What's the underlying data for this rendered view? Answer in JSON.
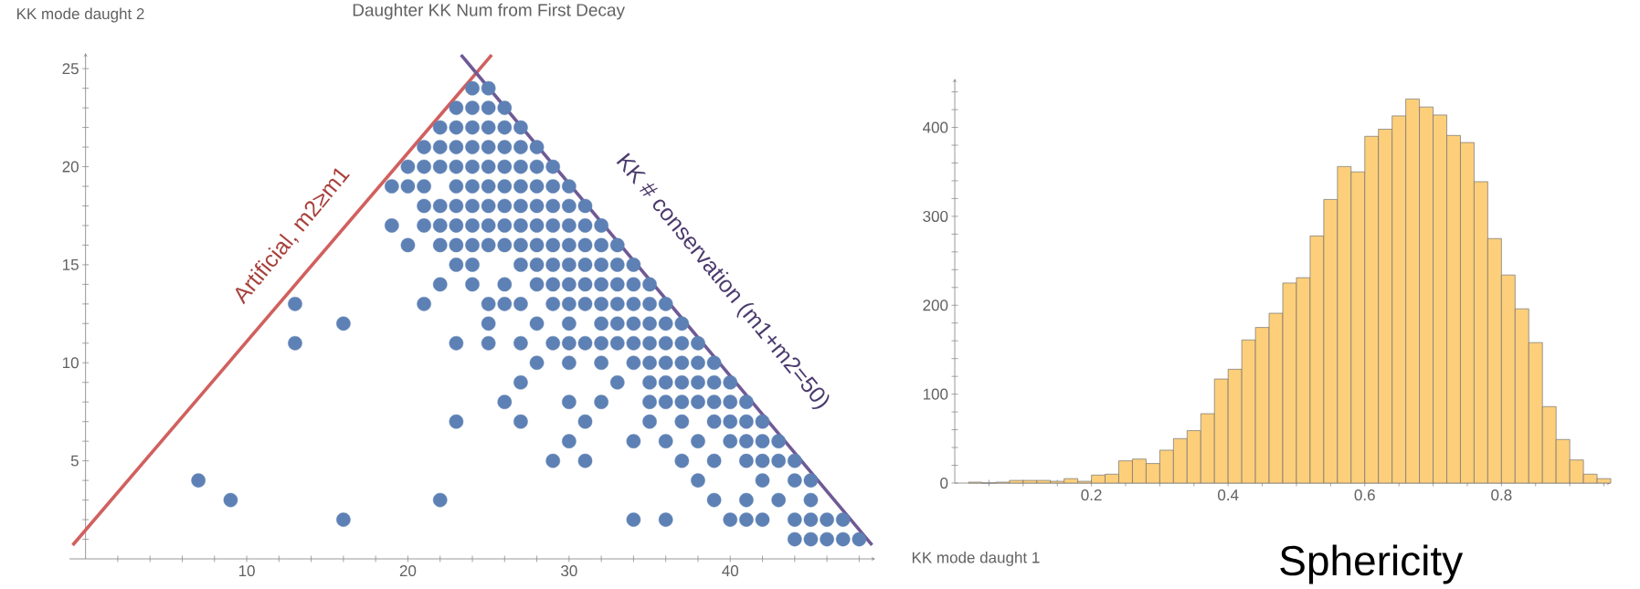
{
  "chart_data": [
    {
      "type": "scatter",
      "title": "Daughter KK Num from First Decay",
      "xlabel": "KK mode daught 1",
      "ylabel": "KK mode daught 2",
      "xlim": [
        -1,
        49
      ],
      "ylim": [
        0,
        25.8
      ],
      "xticks": [
        {
          "value": 2,
          "label": null
        },
        {
          "value": 4,
          "label": null
        },
        {
          "value": 6,
          "label": null
        },
        {
          "value": 8,
          "label": null
        },
        10,
        {
          "value": 12,
          "label": null
        },
        {
          "value": 14,
          "label": null
        },
        {
          "value": 16,
          "label": null
        },
        {
          "value": 18,
          "label": null
        },
        20,
        {
          "value": 22,
          "label": null
        },
        {
          "value": 24,
          "label": null
        },
        {
          "value": 26,
          "label": null
        },
        {
          "value": 28,
          "label": null
        },
        30,
        {
          "value": 32,
          "label": null
        },
        {
          "value": 34,
          "label": null
        },
        {
          "value": 36,
          "label": null
        },
        {
          "value": 38,
          "label": null
        },
        40,
        {
          "value": 42,
          "label": null
        },
        {
          "value": 44,
          "label": null
        },
        {
          "value": 46,
          "label": null
        },
        {
          "value": 48,
          "label": null
        }
      ],
      "yticks": [
        {
          "value": 1,
          "label": null
        },
        {
          "value": 2,
          "label": null
        },
        {
          "value": 3,
          "label": null
        },
        {
          "value": 4,
          "label": null
        },
        5,
        {
          "value": 6,
          "label": null
        },
        {
          "value": 7,
          "label": null
        },
        {
          "value": 8,
          "label": null
        },
        {
          "value": 9,
          "label": null
        },
        10,
        {
          "value": 11,
          "label": null
        },
        {
          "value": 12,
          "label": null
        },
        {
          "value": 13,
          "label": null
        },
        {
          "value": 14,
          "label": null
        },
        15,
        {
          "value": 16,
          "label": null
        },
        {
          "value": 17,
          "label": null
        },
        {
          "value": 18,
          "label": null
        },
        {
          "value": 19,
          "label": null
        },
        20,
        {
          "value": 21,
          "label": null
        },
        {
          "value": 22,
          "label": null
        },
        {
          "value": 23,
          "label": null
        },
        {
          "value": 24,
          "label": null
        },
        25
      ],
      "series": [
        {
          "type": "scatter",
          "marker": "circle",
          "color": "#5e81b5",
          "x": [
            24,
            25,
            23,
            24,
            25,
            26,
            22,
            23,
            24,
            25,
            26,
            27,
            21,
            22,
            23,
            24,
            25,
            26,
            27,
            28,
            20,
            21,
            22,
            23,
            24,
            25,
            26,
            27,
            28,
            29,
            19,
            20,
            21,
            23,
            24,
            25,
            26,
            27,
            28,
            29,
            30,
            21,
            22,
            23,
            24,
            25,
            26,
            27,
            28,
            29,
            30,
            31,
            19,
            21,
            22,
            23,
            24,
            25,
            26,
            27,
            28,
            29,
            30,
            31,
            32,
            20,
            22,
            23,
            24,
            25,
            26,
            27,
            28,
            29,
            30,
            31,
            32,
            33,
            23,
            24,
            27,
            28,
            29,
            30,
            31,
            32,
            33,
            34,
            22,
            24,
            26,
            28,
            29,
            30,
            31,
            32,
            33,
            34,
            35,
            13,
            21,
            25,
            26,
            27,
            29,
            30,
            31,
            32,
            33,
            34,
            35,
            36,
            16,
            25,
            28,
            30,
            32,
            33,
            34,
            35,
            36,
            37,
            13,
            23,
            25,
            27,
            29,
            30,
            31,
            32,
            33,
            34,
            35,
            36,
            37,
            38,
            28,
            30,
            32,
            34,
            35,
            36,
            37,
            38,
            39,
            27,
            33,
            35,
            36,
            37,
            38,
            39,
            40,
            26,
            30,
            32,
            35,
            36,
            37,
            38,
            39,
            40,
            41,
            23,
            27,
            31,
            35,
            37,
            39,
            40,
            41,
            42,
            30,
            34,
            36,
            38,
            40,
            41,
            42,
            43,
            29,
            31,
            37,
            39,
            41,
            42,
            43,
            44,
            7,
            38,
            42,
            44,
            45,
            9,
            22,
            39,
            41,
            43,
            45,
            16,
            34,
            36,
            40,
            41,
            42,
            44,
            45,
            46,
            47,
            44,
            45,
            46,
            47,
            48
          ],
          "values": [
            24,
            24,
            23,
            23,
            23,
            23,
            22,
            22,
            22,
            22,
            22,
            22,
            21,
            21,
            21,
            21,
            21,
            21,
            21,
            21,
            20,
            20,
            20,
            20,
            20,
            20,
            20,
            20,
            20,
            20,
            19,
            19,
            19,
            19,
            19,
            19,
            19,
            19,
            19,
            19,
            19,
            18,
            18,
            18,
            18,
            18,
            18,
            18,
            18,
            18,
            18,
            18,
            17,
            17,
            17,
            17,
            17,
            17,
            17,
            17,
            17,
            17,
            17,
            17,
            17,
            16,
            16,
            16,
            16,
            16,
            16,
            16,
            16,
            16,
            16,
            16,
            16,
            16,
            15,
            15,
            15,
            15,
            15,
            15,
            15,
            15,
            15,
            15,
            14,
            14,
            14,
            14,
            14,
            14,
            14,
            14,
            14,
            14,
            14,
            13,
            13,
            13,
            13,
            13,
            13,
            13,
            13,
            13,
            13,
            13,
            13,
            13,
            12,
            12,
            12,
            12,
            12,
            12,
            12,
            12,
            12,
            12,
            11,
            11,
            11,
            11,
            11,
            11,
            11,
            11,
            11,
            11,
            11,
            11,
            11,
            11,
            10,
            10,
            10,
            10,
            10,
            10,
            10,
            10,
            10,
            9,
            9,
            9,
            9,
            9,
            9,
            9,
            9,
            8,
            8,
            8,
            8,
            8,
            8,
            8,
            8,
            8,
            8,
            7,
            7,
            7,
            7,
            7,
            7,
            7,
            7,
            7,
            6,
            6,
            6,
            6,
            6,
            6,
            6,
            6,
            5,
            5,
            5,
            5,
            5,
            5,
            5,
            5,
            4,
            4,
            4,
            4,
            4,
            3,
            3,
            3,
            3,
            3,
            3,
            2,
            2,
            2,
            2,
            2,
            2,
            2,
            2,
            2,
            2,
            1,
            1,
            1,
            1,
            1
          ]
        },
        {
          "type": "line",
          "color": "#d0605e",
          "x": [
            -0.8,
            25.2
          ],
          "values": [
            0.7,
            25.7
          ]
        },
        {
          "type": "line",
          "color": "#6f5a95",
          "x": [
            23.3,
            48.8
          ],
          "values": [
            25.7,
            0.7
          ]
        }
      ],
      "annotations": [
        "Artificial, m2≥m1",
        "KK # conservation (m1+m2=50)"
      ]
    },
    {
      "type": "histogram",
      "xlabel": "Sphericity",
      "color": "#fdcf7b",
      "bins": [
        0.02,
        0.04,
        0.06,
        0.08,
        0.1,
        0.12,
        0.14,
        0.16,
        0.18,
        0.2,
        0.22,
        0.24,
        0.26,
        0.28,
        0.3,
        0.32,
        0.34,
        0.36,
        0.38,
        0.4,
        0.42,
        0.44,
        0.46,
        0.48,
        0.5,
        0.52,
        0.54,
        0.56,
        0.58,
        0.6,
        0.62,
        0.64,
        0.66,
        0.68,
        0.7,
        0.72,
        0.74,
        0.76,
        0.78,
        0.8,
        0.82,
        0.84,
        0.86,
        0.88,
        0.9,
        0.92,
        0.94,
        0.96
      ],
      "values": [
        1,
        0,
        1,
        3,
        3,
        3,
        2,
        5,
        2,
        9,
        10,
        25,
        27,
        22,
        37,
        50,
        59,
        78,
        117,
        128,
        161,
        175,
        191,
        225,
        231,
        278,
        319,
        356,
        350,
        390,
        398,
        413,
        432,
        423,
        414,
        391,
        383,
        339,
        275,
        234,
        196,
        158,
        86,
        49,
        26,
        10,
        5
      ],
      "xlim": [
        0,
        0.96
      ],
      "ylim": [
        0,
        455
      ],
      "xticks": [
        {
          "value": 0.05,
          "label": null
        },
        {
          "value": 0.1,
          "label": null
        },
        {
          "value": 0.15,
          "label": null
        },
        0.2,
        {
          "value": 0.25,
          "label": null
        },
        {
          "value": 0.3,
          "label": null
        },
        {
          "value": 0.35,
          "label": null
        },
        0.4,
        {
          "value": 0.45,
          "label": null
        },
        {
          "value": 0.5,
          "label": null
        },
        {
          "value": 0.55,
          "label": null
        },
        0.6,
        {
          "value": 0.65,
          "label": null
        },
        {
          "value": 0.7,
          "label": null
        },
        {
          "value": 0.75,
          "label": null
        },
        0.8,
        {
          "value": 0.85,
          "label": null
        },
        {
          "value": 0.9,
          "label": null
        },
        {
          "value": 0.95,
          "label": null
        }
      ],
      "yticks": [
        0,
        {
          "value": 20,
          "label": null
        },
        {
          "value": 40,
          "label": null
        },
        {
          "value": 60,
          "label": null
        },
        {
          "value": 80,
          "label": null
        },
        100,
        {
          "value": 120,
          "label": null
        },
        {
          "value": 140,
          "label": null
        },
        {
          "value": 160,
          "label": null
        },
        {
          "value": 180,
          "label": null
        },
        200,
        {
          "value": 220,
          "label": null
        },
        {
          "value": 240,
          "label": null
        },
        {
          "value": 260,
          "label": null
        },
        {
          "value": 280,
          "label": null
        },
        300,
        {
          "value": 320,
          "label": null
        },
        {
          "value": 340,
          "label": null
        },
        {
          "value": 360,
          "label": null
        },
        {
          "value": 380,
          "label": null
        },
        400,
        {
          "value": 420,
          "label": null
        },
        {
          "value": 440,
          "label": null
        }
      ]
    }
  ]
}
